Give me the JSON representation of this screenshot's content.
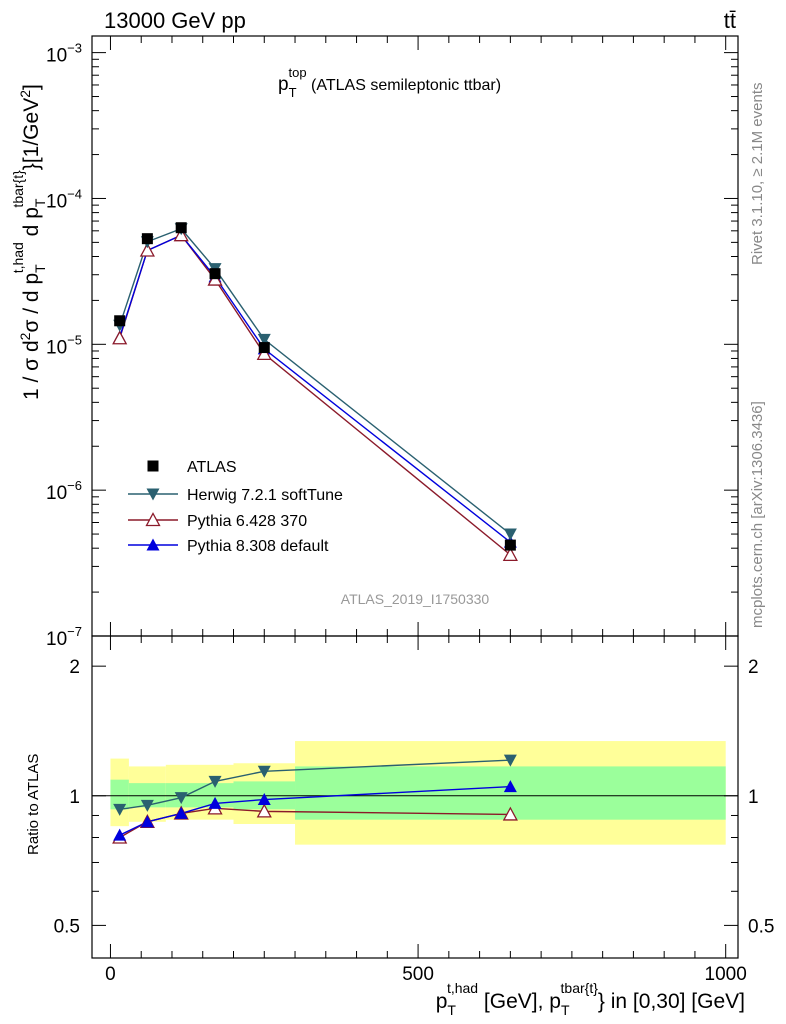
{
  "header": {
    "left": "13000 GeV pp",
    "right": "tt̄"
  },
  "side_labels": {
    "rivet": "Rivet 3.1.10, ≥ 2.1M events",
    "mcplots": "mcplots.cern.ch [arXiv:1306.3436]"
  },
  "colors": {
    "data": "#000000",
    "herwig": "#2a6070",
    "pythia6": "#8b1a2a",
    "pythia8": "#0000dd",
    "band_inner": "#9bff9b",
    "band_outer": "#ffff99"
  },
  "chart_data": [
    {
      "type": "scatter",
      "title_main": "p",
      "title_sub": "T",
      "title_sup": "top",
      "title_rest": " (ATLAS semileptonic ttbar)",
      "watermark": "ATLAS_2019_I1750330",
      "ylabel": "1 / σ d²σ / d pT^{t,had} d pT^{tbar{t}} [1/GeV²]",
      "y_log": true,
      "ylim": [
        1e-07,
        0.0013
      ],
      "xlim": [
        -30,
        1020
      ],
      "y_tick_labels": [
        {
          "mant": "10",
          "exp": "−7",
          "v": 1e-07
        },
        {
          "mant": "10",
          "exp": "−6",
          "v": 1e-06
        },
        {
          "mant": "10",
          "exp": "−5",
          "v": 1e-05
        },
        {
          "mant": "10",
          "exp": "−4",
          "v": 0.0001
        },
        {
          "mant": "10",
          "exp": "−3",
          "v": 0.001
        }
      ],
      "legend_position": "lower-left",
      "series": [
        {
          "name": "ATLAS",
          "key": "data",
          "marker": "square",
          "x": [
            15,
            60,
            115,
            170,
            250,
            650
          ],
          "y": [
            1.45e-05,
            5.3e-05,
            6.3e-05,
            3.05e-05,
            9.5e-06,
            4.2e-07
          ]
        },
        {
          "name": "Herwig 7.2.1 softTune",
          "key": "herwig",
          "marker": "triangle-down",
          "x": [
            15,
            60,
            115,
            170,
            250,
            650
          ],
          "y": [
            1.35e-05,
            5.05e-05,
            6.2e-05,
            3.3e-05,
            1.08e-05,
            5e-07
          ]
        },
        {
          "name": "Pythia 6.428 370",
          "key": "pythia6",
          "marker": "triangle-up-open",
          "x": [
            15,
            60,
            115,
            170,
            250,
            650
          ],
          "y": [
            1.1e-05,
            4.4e-05,
            5.6e-05,
            2.78e-05,
            8.6e-06,
            3.6e-07
          ]
        },
        {
          "name": "Pythia 8.308 default",
          "key": "pythia8",
          "marker": "triangle-up",
          "x": [
            15,
            60,
            115,
            170,
            250,
            650
          ],
          "y": [
            1.12e-05,
            4.4e-05,
            5.6e-05,
            2.9e-05,
            9.3e-06,
            4.4e-07
          ]
        }
      ]
    },
    {
      "type": "scatter",
      "ylabel": "Ratio to ATLAS",
      "xlabel_main": "p",
      "xlabel_sub1": "T",
      "xlabel_sup1": "t,had",
      "xlabel_mid": " [GeV], p",
      "xlabel_sub2": "T",
      "xlabel_sup2": "tbar{t}",
      "xlabel_rest": "} in [0,30] [GeV]",
      "y_log": true,
      "ylim": [
        0.42,
        2.35
      ],
      "xlim": [
        -30,
        1020
      ],
      "y_ticks": [
        0.5,
        1,
        2
      ],
      "y_tick_labels": [
        "0.5",
        "1",
        "2"
      ],
      "x_ticks": [
        0,
        500,
        1000
      ],
      "x_tick_labels": [
        "0",
        "500",
        "1000"
      ],
      "bands": [
        {
          "x0": 0,
          "x1": 30,
          "inner": [
            0.93,
            1.09
          ],
          "outer": [
            0.85,
            1.22
          ]
        },
        {
          "x0": 30,
          "x1": 90,
          "inner": [
            0.94,
            1.07
          ],
          "outer": [
            0.87,
            1.17
          ]
        },
        {
          "x0": 90,
          "x1": 200,
          "inner": [
            0.94,
            1.07
          ],
          "outer": [
            0.88,
            1.18
          ]
        },
        {
          "x0": 200,
          "x1": 300,
          "inner": [
            0.93,
            1.08
          ],
          "outer": [
            0.86,
            1.19
          ]
        },
        {
          "x0": 300,
          "x1": 1000,
          "inner": [
            0.88,
            1.17
          ],
          "outer": [
            0.77,
            1.34
          ]
        }
      ],
      "series": [
        {
          "key": "herwig",
          "marker": "triangle-down",
          "x": [
            15,
            60,
            115,
            170,
            250,
            650
          ],
          "y": [
            0.93,
            0.95,
            0.99,
            1.08,
            1.14,
            1.21
          ]
        },
        {
          "key": "pythia6",
          "marker": "triangle-up-open",
          "x": [
            15,
            60,
            115,
            170,
            250,
            650
          ],
          "y": [
            0.8,
            0.87,
            0.91,
            0.935,
            0.92,
            0.905
          ]
        },
        {
          "key": "pythia8",
          "marker": "triangle-up",
          "x": [
            15,
            60,
            115,
            170,
            250,
            650
          ],
          "y": [
            0.81,
            0.87,
            0.91,
            0.96,
            0.98,
            1.05
          ]
        }
      ]
    }
  ]
}
